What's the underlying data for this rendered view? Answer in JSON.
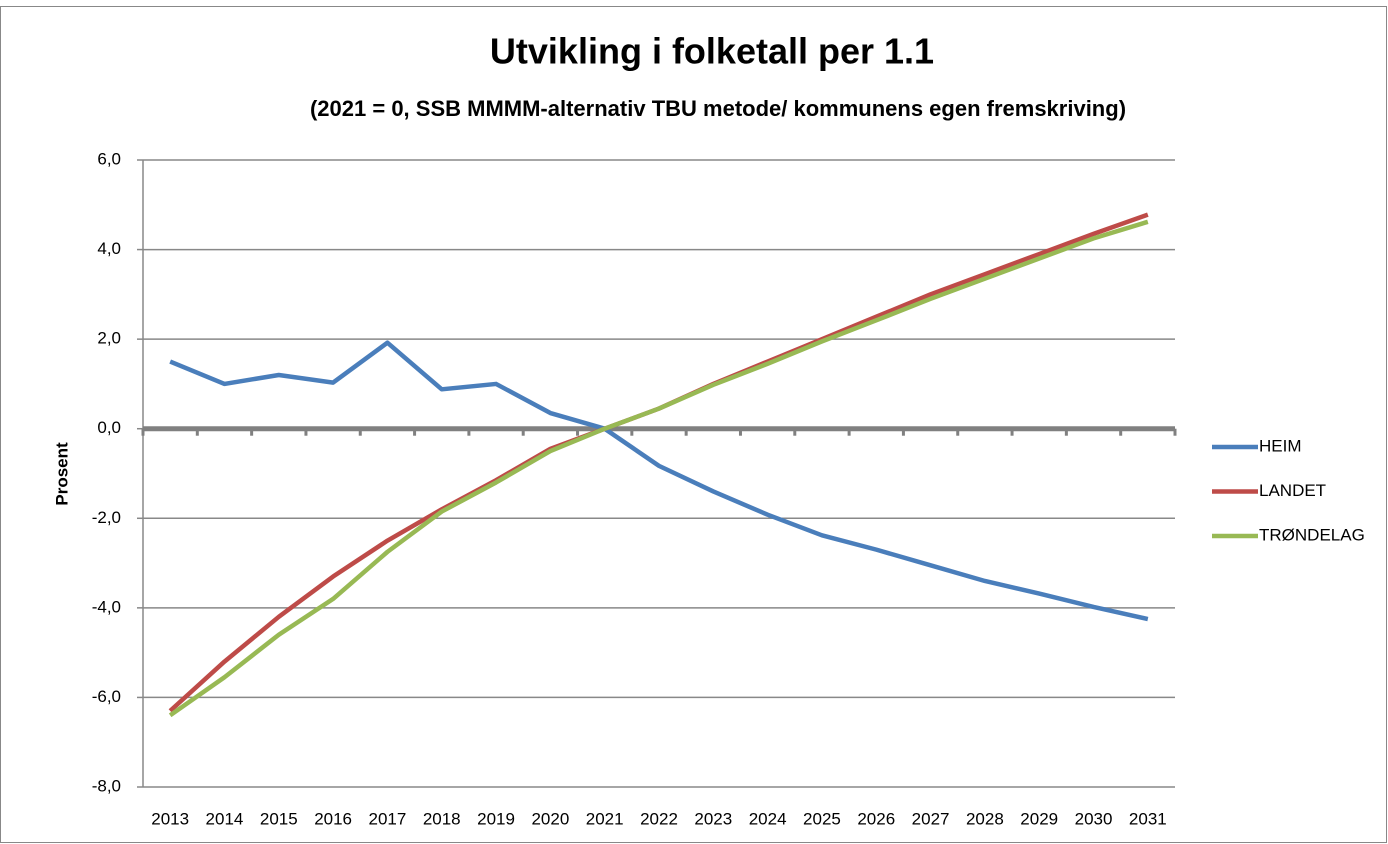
{
  "chart_data": {
    "type": "line",
    "title": "Utvikling i folketall per 1.1",
    "subtitle": "(2021 = 0, SSB MMMM-alternativ TBU metode/ kommunens egen fremskriving)",
    "y_label": "Prosent",
    "categories": [
      "2013",
      "2014",
      "2015",
      "2016",
      "2017",
      "2018",
      "2019",
      "2020",
      "2021",
      "2022",
      "2023",
      "2024",
      "2025",
      "2026",
      "2027",
      "2028",
      "2029",
      "2030",
      "2031"
    ],
    "series": [
      {
        "name": "HEIM",
        "color": "#4a7ebb",
        "values": [
          1.5,
          1.0,
          1.2,
          1.03,
          1.92,
          0.88,
          1.0,
          0.35,
          0,
          -0.83,
          -1.4,
          -1.92,
          -2.38,
          -2.7,
          -3.05,
          -3.4,
          -3.68,
          -3.98,
          -4.25
        ]
      },
      {
        "name": "LANDET",
        "color": "#be4b48",
        "values": [
          -6.3,
          -5.2,
          -4.2,
          -3.3,
          -2.5,
          -1.8,
          -1.15,
          -0.45,
          0,
          0.45,
          1.0,
          1.5,
          2.0,
          2.5,
          3.0,
          3.45,
          3.9,
          4.35,
          4.78
        ]
      },
      {
        "name": "TRØNDELAG",
        "color": "#98b954",
        "values": [
          -6.4,
          -5.55,
          -4.6,
          -3.8,
          -2.75,
          -1.85,
          -1.2,
          -0.5,
          0,
          0.45,
          0.98,
          1.45,
          1.95,
          2.42,
          2.9,
          3.35,
          3.8,
          4.25,
          4.62
        ]
      }
    ],
    "ylim": [
      -8,
      6
    ],
    "yticks": [
      {
        "value": -8,
        "label": "-8,0"
      },
      {
        "value": -6,
        "label": "-6,0"
      },
      {
        "value": -4,
        "label": "-4,0"
      },
      {
        "value": -2,
        "label": "-2,0"
      },
      {
        "value": 0,
        "label": "0,0"
      },
      {
        "value": 2,
        "label": "2,0"
      },
      {
        "value": 4,
        "label": "4,0"
      },
      {
        "value": 6,
        "label": "6,0"
      }
    ],
    "grid": true,
    "legend": "right"
  }
}
